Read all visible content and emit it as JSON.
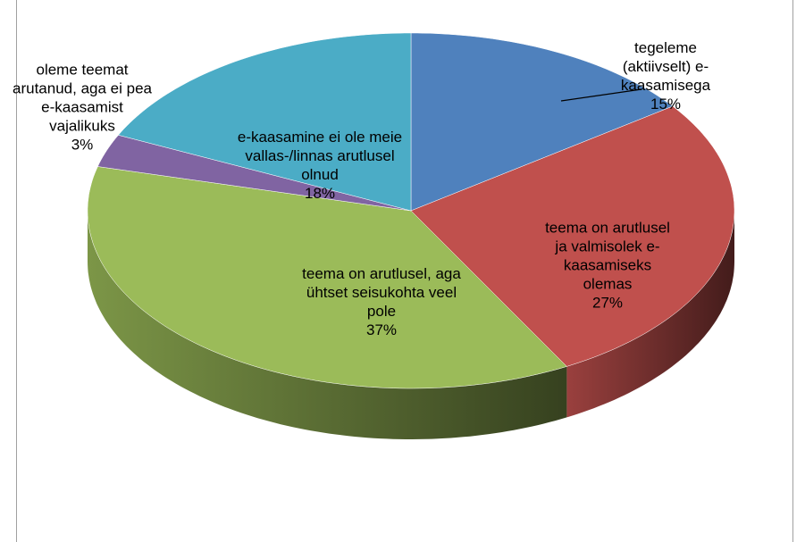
{
  "chart_data": {
    "type": "pie3d",
    "categories": [
      "tegeleme (aktiivselt) e-kaasamisega",
      "teema on arutlusel ja valmisolek e-kaasamiseks olemas",
      "teema on arutlusel, aga ühtset seisukohta veel pole",
      "oleme teemat arutanud, aga ei pea e-kaasamist vajalikuks",
      "e-kaasamine ei ole meie vallas-/linnas arutlusel olnud"
    ],
    "values": [
      15,
      27,
      37,
      3,
      18
    ],
    "value_labels": [
      "15%",
      "27%",
      "37%",
      "3%",
      "18%"
    ],
    "colors": [
      "#4f81bd",
      "#c0504d",
      "#9bbb59",
      "#8064a2",
      "#4bacc6"
    ]
  }
}
